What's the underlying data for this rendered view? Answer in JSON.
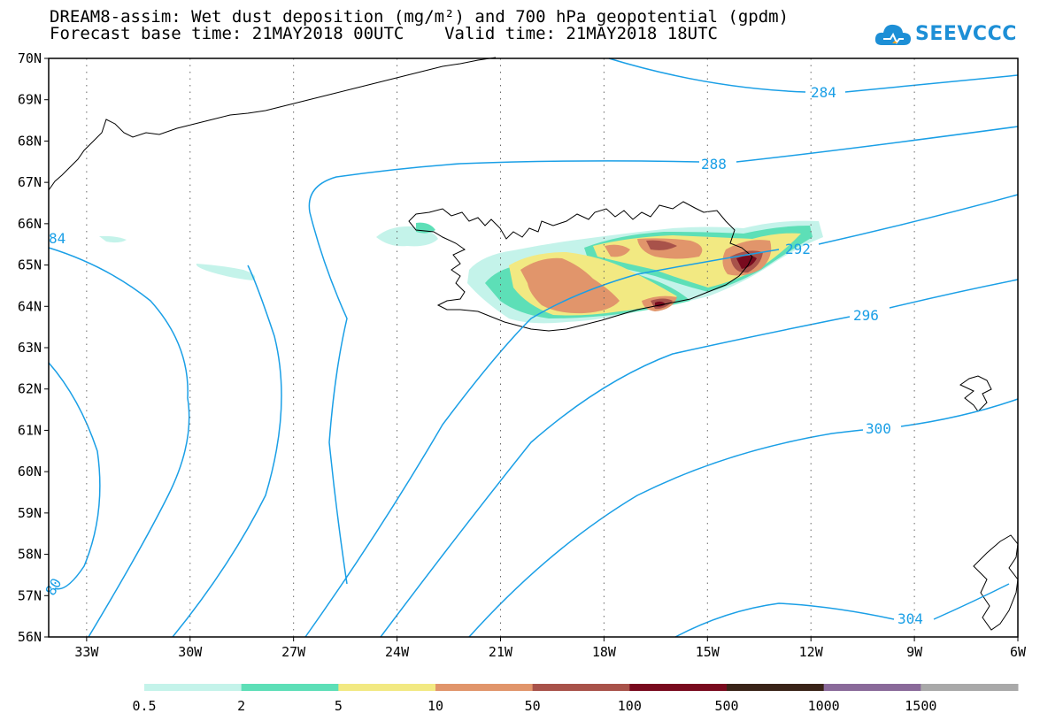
{
  "title": {
    "line1": "DREAM8-assim: Wet dust deposition (mg/m²) and 700 hPa geopotential (gpdm)",
    "line2": "Forecast base time: 21MAY2018 00UTC    Valid time: 21MAY2018 18UTC"
  },
  "logo": {
    "text": "SEEVCCC",
    "icon": "cloud-icon"
  },
  "axes": {
    "lat_labels": [
      "70N",
      "69N",
      "68N",
      "67N",
      "66N",
      "65N",
      "64N",
      "63N",
      "62N",
      "61N",
      "60N",
      "59N",
      "58N",
      "57N",
      "56N"
    ],
    "lon_labels": [
      "33W",
      "30W",
      "27W",
      "24W",
      "21W",
      "18W",
      "15W",
      "12W",
      "9W",
      "6W"
    ],
    "lon_range": [
      -34.1,
      -6
    ],
    "lat_range": [
      56,
      70
    ],
    "grid": "dotted"
  },
  "contours": {
    "labels": [
      "284",
      "288",
      "292",
      "296",
      "300",
      "304",
      "84",
      "80"
    ],
    "color": "#1a9fe6"
  },
  "colorbar": {
    "labels": [
      "0.5",
      "2",
      "5",
      "10",
      "50",
      "100",
      "500",
      "1000",
      "1500"
    ],
    "colors": [
      "#c4f3ea",
      "#5ddfb7",
      "#f2e982",
      "#e1956b",
      "#a8524a",
      "#780a1e",
      "#3a2418",
      "#8a6a9a",
      "#a9a9a9"
    ]
  },
  "colors": {
    "contour": "#1a9fe6",
    "coast": "#000000",
    "logo": "#1d8fd6"
  }
}
